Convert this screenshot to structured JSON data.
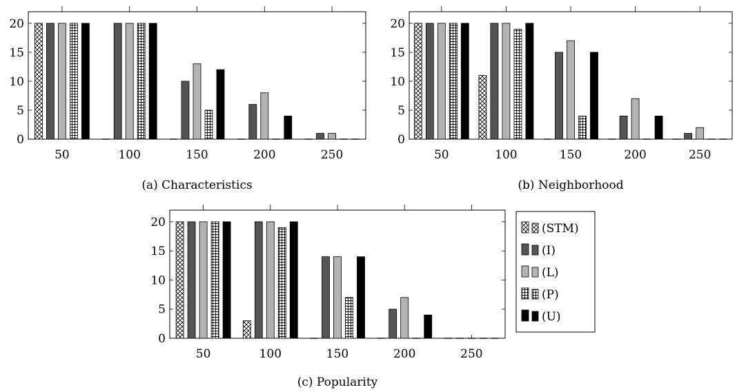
{
  "chart_data": [
    {
      "type": "bar",
      "title": "(a) Characteristics",
      "categories": [
        "50",
        "100",
        "150",
        "200",
        "250"
      ],
      "ylim": [
        0,
        22
      ],
      "yticks": [
        "0",
        "5",
        "10",
        "15",
        "20"
      ],
      "series": [
        {
          "name": "(STM)",
          "values": [
            20,
            0,
            0,
            0,
            0
          ]
        },
        {
          "name": "(I)",
          "values": [
            20,
            20,
            10,
            6,
            1
          ]
        },
        {
          "name": "(L)",
          "values": [
            20,
            20,
            13,
            8,
            1
          ]
        },
        {
          "name": "(P)",
          "values": [
            20,
            20,
            5,
            0,
            0
          ]
        },
        {
          "name": "(U)",
          "values": [
            20,
            20,
            12,
            4,
            0
          ]
        }
      ]
    },
    {
      "type": "bar",
      "title": "(b) Neighborhood",
      "categories": [
        "50",
        "100",
        "150",
        "200",
        "250"
      ],
      "ylim": [
        0,
        22
      ],
      "yticks": [
        "0",
        "5",
        "10",
        "15",
        "20"
      ],
      "series": [
        {
          "name": "(STM)",
          "values": [
            20,
            11,
            0,
            0,
            0
          ]
        },
        {
          "name": "(I)",
          "values": [
            20,
            20,
            15,
            4,
            1
          ]
        },
        {
          "name": "(L)",
          "values": [
            20,
            20,
            17,
            7,
            2
          ]
        },
        {
          "name": "(P)",
          "values": [
            20,
            19,
            4,
            0,
            0
          ]
        },
        {
          "name": "(U)",
          "values": [
            20,
            20,
            15,
            4,
            0
          ]
        }
      ]
    },
    {
      "type": "bar",
      "title": "(c) Popularity",
      "categories": [
        "50",
        "100",
        "150",
        "200",
        "250"
      ],
      "ylim": [
        0,
        22
      ],
      "yticks": [
        "0",
        "5",
        "10",
        "15",
        "20"
      ],
      "series": [
        {
          "name": "(STM)",
          "values": [
            20,
            3,
            0,
            0,
            0
          ]
        },
        {
          "name": "(I)",
          "values": [
            20,
            20,
            14,
            5,
            0
          ]
        },
        {
          "name": "(L)",
          "values": [
            20,
            20,
            14,
            7,
            0
          ]
        },
        {
          "name": "(P)",
          "values": [
            20,
            19,
            7,
            0,
            0
          ]
        },
        {
          "name": "(U)",
          "values": [
            20,
            20,
            14,
            4,
            0
          ]
        }
      ]
    }
  ],
  "legend": {
    "entries": [
      {
        "label": "(STM)",
        "style": "crosshatch"
      },
      {
        "label": "(I)",
        "style": "dark-gray"
      },
      {
        "label": "(L)",
        "style": "light-gray"
      },
      {
        "label": "(P)",
        "style": "grid"
      },
      {
        "label": "(U)",
        "style": "black"
      }
    ]
  },
  "colors": {
    "dark_gray": "#555555",
    "light_gray": "#b3b3b3",
    "black": "#000000",
    "axis": "#000000"
  }
}
